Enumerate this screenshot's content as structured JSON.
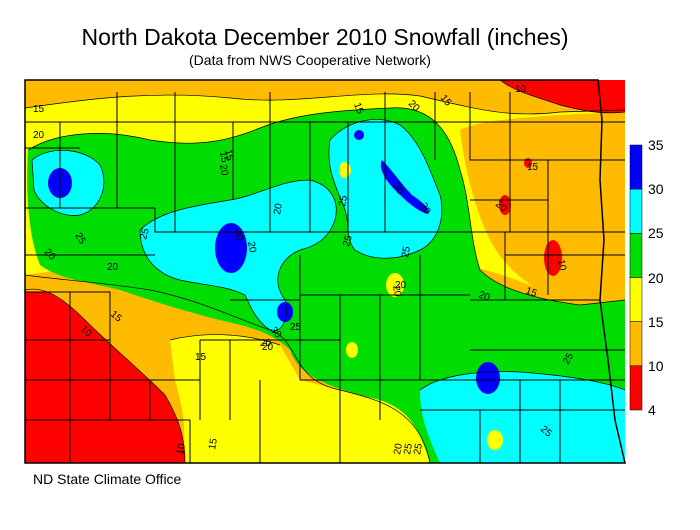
{
  "title": "North Dakota December 2010 Snowfall (inches)",
  "subtitle": "(Data from NWS Cooperative Network)",
  "credit": "ND State Climate Office",
  "legend": {
    "labels": [
      "35",
      "30",
      "25",
      "20",
      "15",
      "10",
      "4"
    ],
    "bins": [
      {
        "min": 30,
        "max": 35,
        "color": "#0000ff"
      },
      {
        "min": 25,
        "max": 30,
        "color": "#00ffff"
      },
      {
        "min": 20,
        "max": 25,
        "color": "#00dd00"
      },
      {
        "min": 15,
        "max": 20,
        "color": "#ffff00"
      },
      {
        "min": 10,
        "max": 15,
        "color": "#ffbb00"
      },
      {
        "min": 4,
        "max": 10,
        "color": "#ff0000"
      }
    ]
  },
  "contour_labels": [
    "15",
    "20",
    "15",
    "20",
    "15",
    "10",
    "20",
    "15",
    "20",
    "25",
    "20",
    "30",
    "25",
    "20",
    "30",
    "25",
    "25",
    "30",
    "25",
    "20",
    "25",
    "10",
    "15",
    "20",
    "20",
    "30",
    "25",
    "20",
    "20",
    "10",
    "15",
    "25",
    "15",
    "10",
    "20",
    "25",
    "25",
    "20",
    "15",
    "15",
    "20",
    "15"
  ]
}
